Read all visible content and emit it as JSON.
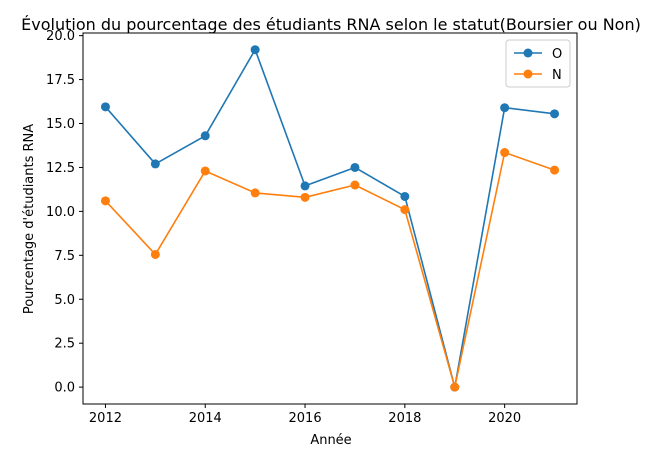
{
  "chart_data": {
    "type": "line",
    "title": "Évolution du pourcentage des étudiants RNA selon le statut(Boursier ou Non)",
    "xlabel": "Année",
    "ylabel": "Pourcentage d'étudiants RNA",
    "x": [
      2012,
      2013,
      2014,
      2015,
      2016,
      2017,
      2018,
      2019,
      2020,
      2021
    ],
    "xlim": [
      2011.55,
      2021.45
    ],
    "ylim": [
      -0.96,
      20.15
    ],
    "xticks": [
      2012,
      2014,
      2016,
      2018,
      2020
    ],
    "xtick_labels": [
      "2012",
      "2014",
      "2016",
      "2018",
      "2020"
    ],
    "yticks": [
      0,
      2.5,
      5,
      7.5,
      10,
      12.5,
      15,
      17.5,
      20
    ],
    "ytick_labels": [
      "0.0",
      "2.5",
      "5.0",
      "7.5",
      "10.0",
      "12.5",
      "15.0",
      "17.5",
      "20.0"
    ],
    "grid": false,
    "legend_position": "top-right",
    "series": [
      {
        "name": "O",
        "color": "#1f77b4",
        "values": [
          15.95,
          12.7,
          14.3,
          19.2,
          11.45,
          12.5,
          10.85,
          0.0,
          15.9,
          15.55
        ]
      },
      {
        "name": "N",
        "color": "#ff7f0e",
        "values": [
          10.6,
          7.55,
          12.3,
          11.05,
          10.8,
          11.5,
          10.1,
          0.0,
          13.35,
          12.35
        ]
      }
    ]
  }
}
